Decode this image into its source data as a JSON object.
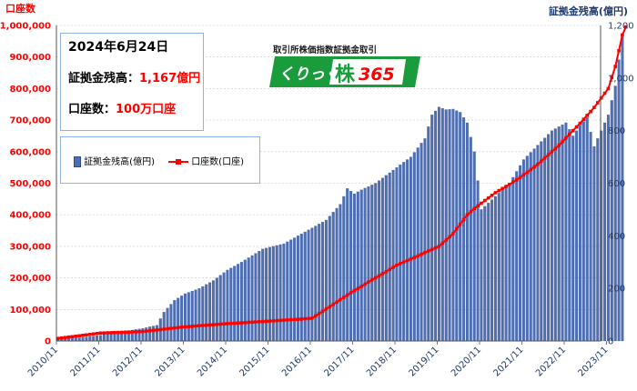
{
  "header": {
    "left_axis_title": "口座数",
    "right_axis_title": "証拠金残高(億円)"
  },
  "info_box": {
    "date": "2024年6月24日",
    "balance_label": "証拠金残高：",
    "balance_value": "1,167億円",
    "accounts_label": "口座数：",
    "accounts_value": "100万口座"
  },
  "logo": {
    "caption": "取引所株価指数証拠金取引",
    "brand_text": "くりっく",
    "brand_kanji": "株",
    "brand_number": "365"
  },
  "legend": {
    "bar_label": "証拠金残高(億円)",
    "line_label": "口座数(口座)"
  },
  "colors": {
    "bar": "#4f6fb5",
    "bar_edge": "#2e4a8c",
    "line": "#ff0000",
    "left_axis_text": "#ff0000",
    "right_axis_text": "#1f3a6b",
    "grid": "#c8c8c8",
    "logo_green": "#1a9b3c"
  },
  "chart_data": {
    "type": "bar",
    "x_tick_labels": [
      "2010/11",
      "2011/11",
      "2012/11",
      "2013/11",
      "2014/11",
      "2015/11",
      "2016/11",
      "2017/11",
      "2018/11",
      "2019/11",
      "2020/11",
      "2021/11",
      "2022/11",
      "2023/11"
    ],
    "y_left": {
      "label": "口座数",
      "lim": [
        0,
        1000000
      ],
      "tick_labels": [
        "0",
        "100,000",
        "200,000",
        "300,000",
        "400,000",
        "500,000",
        "600,000",
        "700,000",
        "800,000",
        "900,000",
        "1,000,000"
      ]
    },
    "y_right": {
      "label": "証拠金残高(億円)",
      "lim": [
        0,
        1200
      ],
      "tick_labels": [
        "0",
        "200",
        "400",
        "600",
        "800",
        "1,000",
        "1,200"
      ]
    },
    "series": [
      {
        "name": "証拠金残高(億円)",
        "kind": "bar",
        "axis": "right",
        "anchors_month_value": [
          [
            0,
            5
          ],
          [
            6,
            12
          ],
          [
            12,
            22
          ],
          [
            18,
            35
          ],
          [
            24,
            48
          ],
          [
            28,
            60
          ],
          [
            30,
            110
          ],
          [
            33,
            155
          ],
          [
            36,
            180
          ],
          [
            40,
            200
          ],
          [
            44,
            230
          ],
          [
            48,
            270
          ],
          [
            52,
            300
          ],
          [
            58,
            350
          ],
          [
            64,
            370
          ],
          [
            70,
            415
          ],
          [
            76,
            460
          ],
          [
            80,
            520
          ],
          [
            82,
            580
          ],
          [
            84,
            560
          ],
          [
            86,
            575
          ],
          [
            90,
            600
          ],
          [
            96,
            660
          ],
          [
            100,
            700
          ],
          [
            104,
            770
          ],
          [
            106,
            860
          ],
          [
            108,
            890
          ],
          [
            110,
            880
          ],
          [
            112,
            882
          ],
          [
            114,
            870
          ],
          [
            116,
            830
          ],
          [
            118,
            720
          ],
          [
            120,
            500
          ],
          [
            124,
            550
          ],
          [
            128,
            600
          ],
          [
            132,
            690
          ],
          [
            136,
            745
          ],
          [
            140,
            800
          ],
          [
            144,
            830
          ],
          [
            146,
            780
          ],
          [
            148,
            820
          ],
          [
            150,
            850
          ],
          [
            152,
            740
          ],
          [
            154,
            800
          ],
          [
            156,
            860
          ],
          [
            158,
            970
          ],
          [
            159,
            1070
          ],
          [
            160,
            1167
          ]
        ]
      },
      {
        "name": "口座数(口座)",
        "kind": "line",
        "axis": "left",
        "anchors_month_value": [
          [
            0,
            8000
          ],
          [
            12,
            25000
          ],
          [
            24,
            30000
          ],
          [
            36,
            45000
          ],
          [
            48,
            55000
          ],
          [
            60,
            63000
          ],
          [
            72,
            72000
          ],
          [
            84,
            160000
          ],
          [
            96,
            240000
          ],
          [
            108,
            300000
          ],
          [
            112,
            340000
          ],
          [
            116,
            400000
          ],
          [
            118,
            420000
          ],
          [
            124,
            470000
          ],
          [
            130,
            510000
          ],
          [
            136,
            560000
          ],
          [
            142,
            620000
          ],
          [
            148,
            690000
          ],
          [
            152,
            740000
          ],
          [
            156,
            800000
          ],
          [
            158,
            870000
          ],
          [
            160,
            970000
          ],
          [
            161,
            995000
          ]
        ]
      }
    ]
  }
}
